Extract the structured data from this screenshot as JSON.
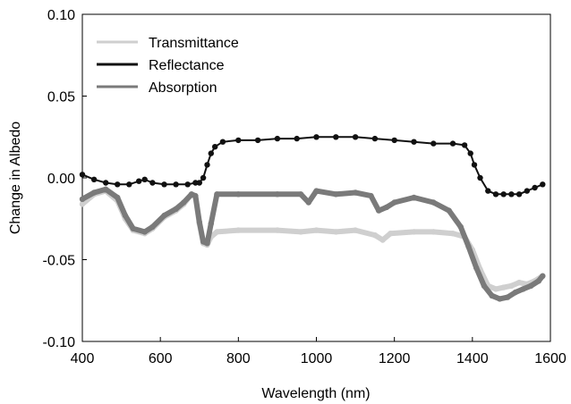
{
  "chart_data": {
    "type": "line",
    "title": "",
    "xlabel": "Wavelength (nm)",
    "ylabel": "Change in Albedo",
    "xlim": [
      400,
      1600
    ],
    "ylim": [
      -0.1,
      0.1
    ],
    "x_ticks": [
      "400",
      "600",
      "800",
      "1000",
      "1200",
      "1400",
      "1600"
    ],
    "y_ticks": [
      "-0.10",
      "-0.05",
      "0.00",
      "0.05",
      "0.10"
    ],
    "grid": false,
    "legend_position": "top-left",
    "series": [
      {
        "name": "Transmittance",
        "color": "#cfcfcf",
        "points": [
          [
            400,
            -0.016
          ],
          [
            430,
            -0.01
          ],
          [
            460,
            -0.008
          ],
          [
            490,
            -0.014
          ],
          [
            510,
            -0.025
          ],
          [
            530,
            -0.032
          ],
          [
            560,
            -0.034
          ],
          [
            580,
            -0.031
          ],
          [
            610,
            -0.024
          ],
          [
            640,
            -0.02
          ],
          [
            660,
            -0.016
          ],
          [
            680,
            -0.01
          ],
          [
            690,
            -0.012
          ],
          [
            700,
            -0.028
          ],
          [
            710,
            -0.04
          ],
          [
            720,
            -0.041
          ],
          [
            730,
            -0.036
          ],
          [
            745,
            -0.033
          ],
          [
            800,
            -0.032
          ],
          [
            900,
            -0.032
          ],
          [
            960,
            -0.033
          ],
          [
            1000,
            -0.032
          ],
          [
            1050,
            -0.033
          ],
          [
            1100,
            -0.032
          ],
          [
            1150,
            -0.035
          ],
          [
            1170,
            -0.038
          ],
          [
            1190,
            -0.034
          ],
          [
            1250,
            -0.033
          ],
          [
            1300,
            -0.033
          ],
          [
            1350,
            -0.034
          ],
          [
            1380,
            -0.036
          ],
          [
            1400,
            -0.044
          ],
          [
            1420,
            -0.056
          ],
          [
            1440,
            -0.066
          ],
          [
            1460,
            -0.068
          ],
          [
            1480,
            -0.067
          ],
          [
            1500,
            -0.066
          ],
          [
            1520,
            -0.064
          ],
          [
            1540,
            -0.065
          ],
          [
            1560,
            -0.063
          ],
          [
            1580,
            -0.06
          ]
        ]
      },
      {
        "name": "Reflectance",
        "color": "#111111",
        "points": [
          [
            400,
            0.002
          ],
          [
            430,
            -0.001
          ],
          [
            460,
            -0.003
          ],
          [
            490,
            -0.004
          ],
          [
            520,
            -0.004
          ],
          [
            545,
            -0.002
          ],
          [
            560,
            -0.001
          ],
          [
            580,
            -0.003
          ],
          [
            610,
            -0.004
          ],
          [
            640,
            -0.004
          ],
          [
            670,
            -0.004
          ],
          [
            690,
            -0.003
          ],
          [
            700,
            -0.003
          ],
          [
            710,
            0.0
          ],
          [
            720,
            0.008
          ],
          [
            730,
            0.015
          ],
          [
            740,
            0.019
          ],
          [
            760,
            0.022
          ],
          [
            800,
            0.023
          ],
          [
            850,
            0.023
          ],
          [
            900,
            0.024
          ],
          [
            950,
            0.024
          ],
          [
            1000,
            0.025
          ],
          [
            1050,
            0.025
          ],
          [
            1100,
            0.025
          ],
          [
            1150,
            0.024
          ],
          [
            1200,
            0.023
          ],
          [
            1250,
            0.022
          ],
          [
            1300,
            0.021
          ],
          [
            1350,
            0.021
          ],
          [
            1380,
            0.02
          ],
          [
            1395,
            0.015
          ],
          [
            1405,
            0.008
          ],
          [
            1420,
            0.0
          ],
          [
            1440,
            -0.008
          ],
          [
            1460,
            -0.01
          ],
          [
            1480,
            -0.01
          ],
          [
            1500,
            -0.01
          ],
          [
            1520,
            -0.01
          ],
          [
            1540,
            -0.008
          ],
          [
            1560,
            -0.006
          ],
          [
            1580,
            -0.004
          ]
        ]
      },
      {
        "name": "Absorption",
        "color": "#7a7a7a",
        "points": [
          [
            400,
            -0.013
          ],
          [
            430,
            -0.009
          ],
          [
            460,
            -0.007
          ],
          [
            490,
            -0.012
          ],
          [
            510,
            -0.023
          ],
          [
            530,
            -0.031
          ],
          [
            560,
            -0.033
          ],
          [
            580,
            -0.03
          ],
          [
            610,
            -0.023
          ],
          [
            640,
            -0.019
          ],
          [
            660,
            -0.015
          ],
          [
            680,
            -0.01
          ],
          [
            690,
            -0.011
          ],
          [
            700,
            -0.027
          ],
          [
            710,
            -0.039
          ],
          [
            720,
            -0.04
          ],
          [
            730,
            -0.028
          ],
          [
            745,
            -0.01
          ],
          [
            800,
            -0.01
          ],
          [
            900,
            -0.01
          ],
          [
            960,
            -0.01
          ],
          [
            980,
            -0.015
          ],
          [
            1000,
            -0.008
          ],
          [
            1050,
            -0.01
          ],
          [
            1100,
            -0.009
          ],
          [
            1140,
            -0.011
          ],
          [
            1160,
            -0.02
          ],
          [
            1180,
            -0.018
          ],
          [
            1200,
            -0.015
          ],
          [
            1250,
            -0.012
          ],
          [
            1300,
            -0.015
          ],
          [
            1340,
            -0.02
          ],
          [
            1370,
            -0.03
          ],
          [
            1390,
            -0.042
          ],
          [
            1410,
            -0.055
          ],
          [
            1430,
            -0.066
          ],
          [
            1450,
            -0.072
          ],
          [
            1470,
            -0.074
          ],
          [
            1490,
            -0.073
          ],
          [
            1510,
            -0.07
          ],
          [
            1530,
            -0.068
          ],
          [
            1550,
            -0.066
          ],
          [
            1570,
            -0.063
          ],
          [
            1580,
            -0.06
          ]
        ]
      }
    ]
  }
}
